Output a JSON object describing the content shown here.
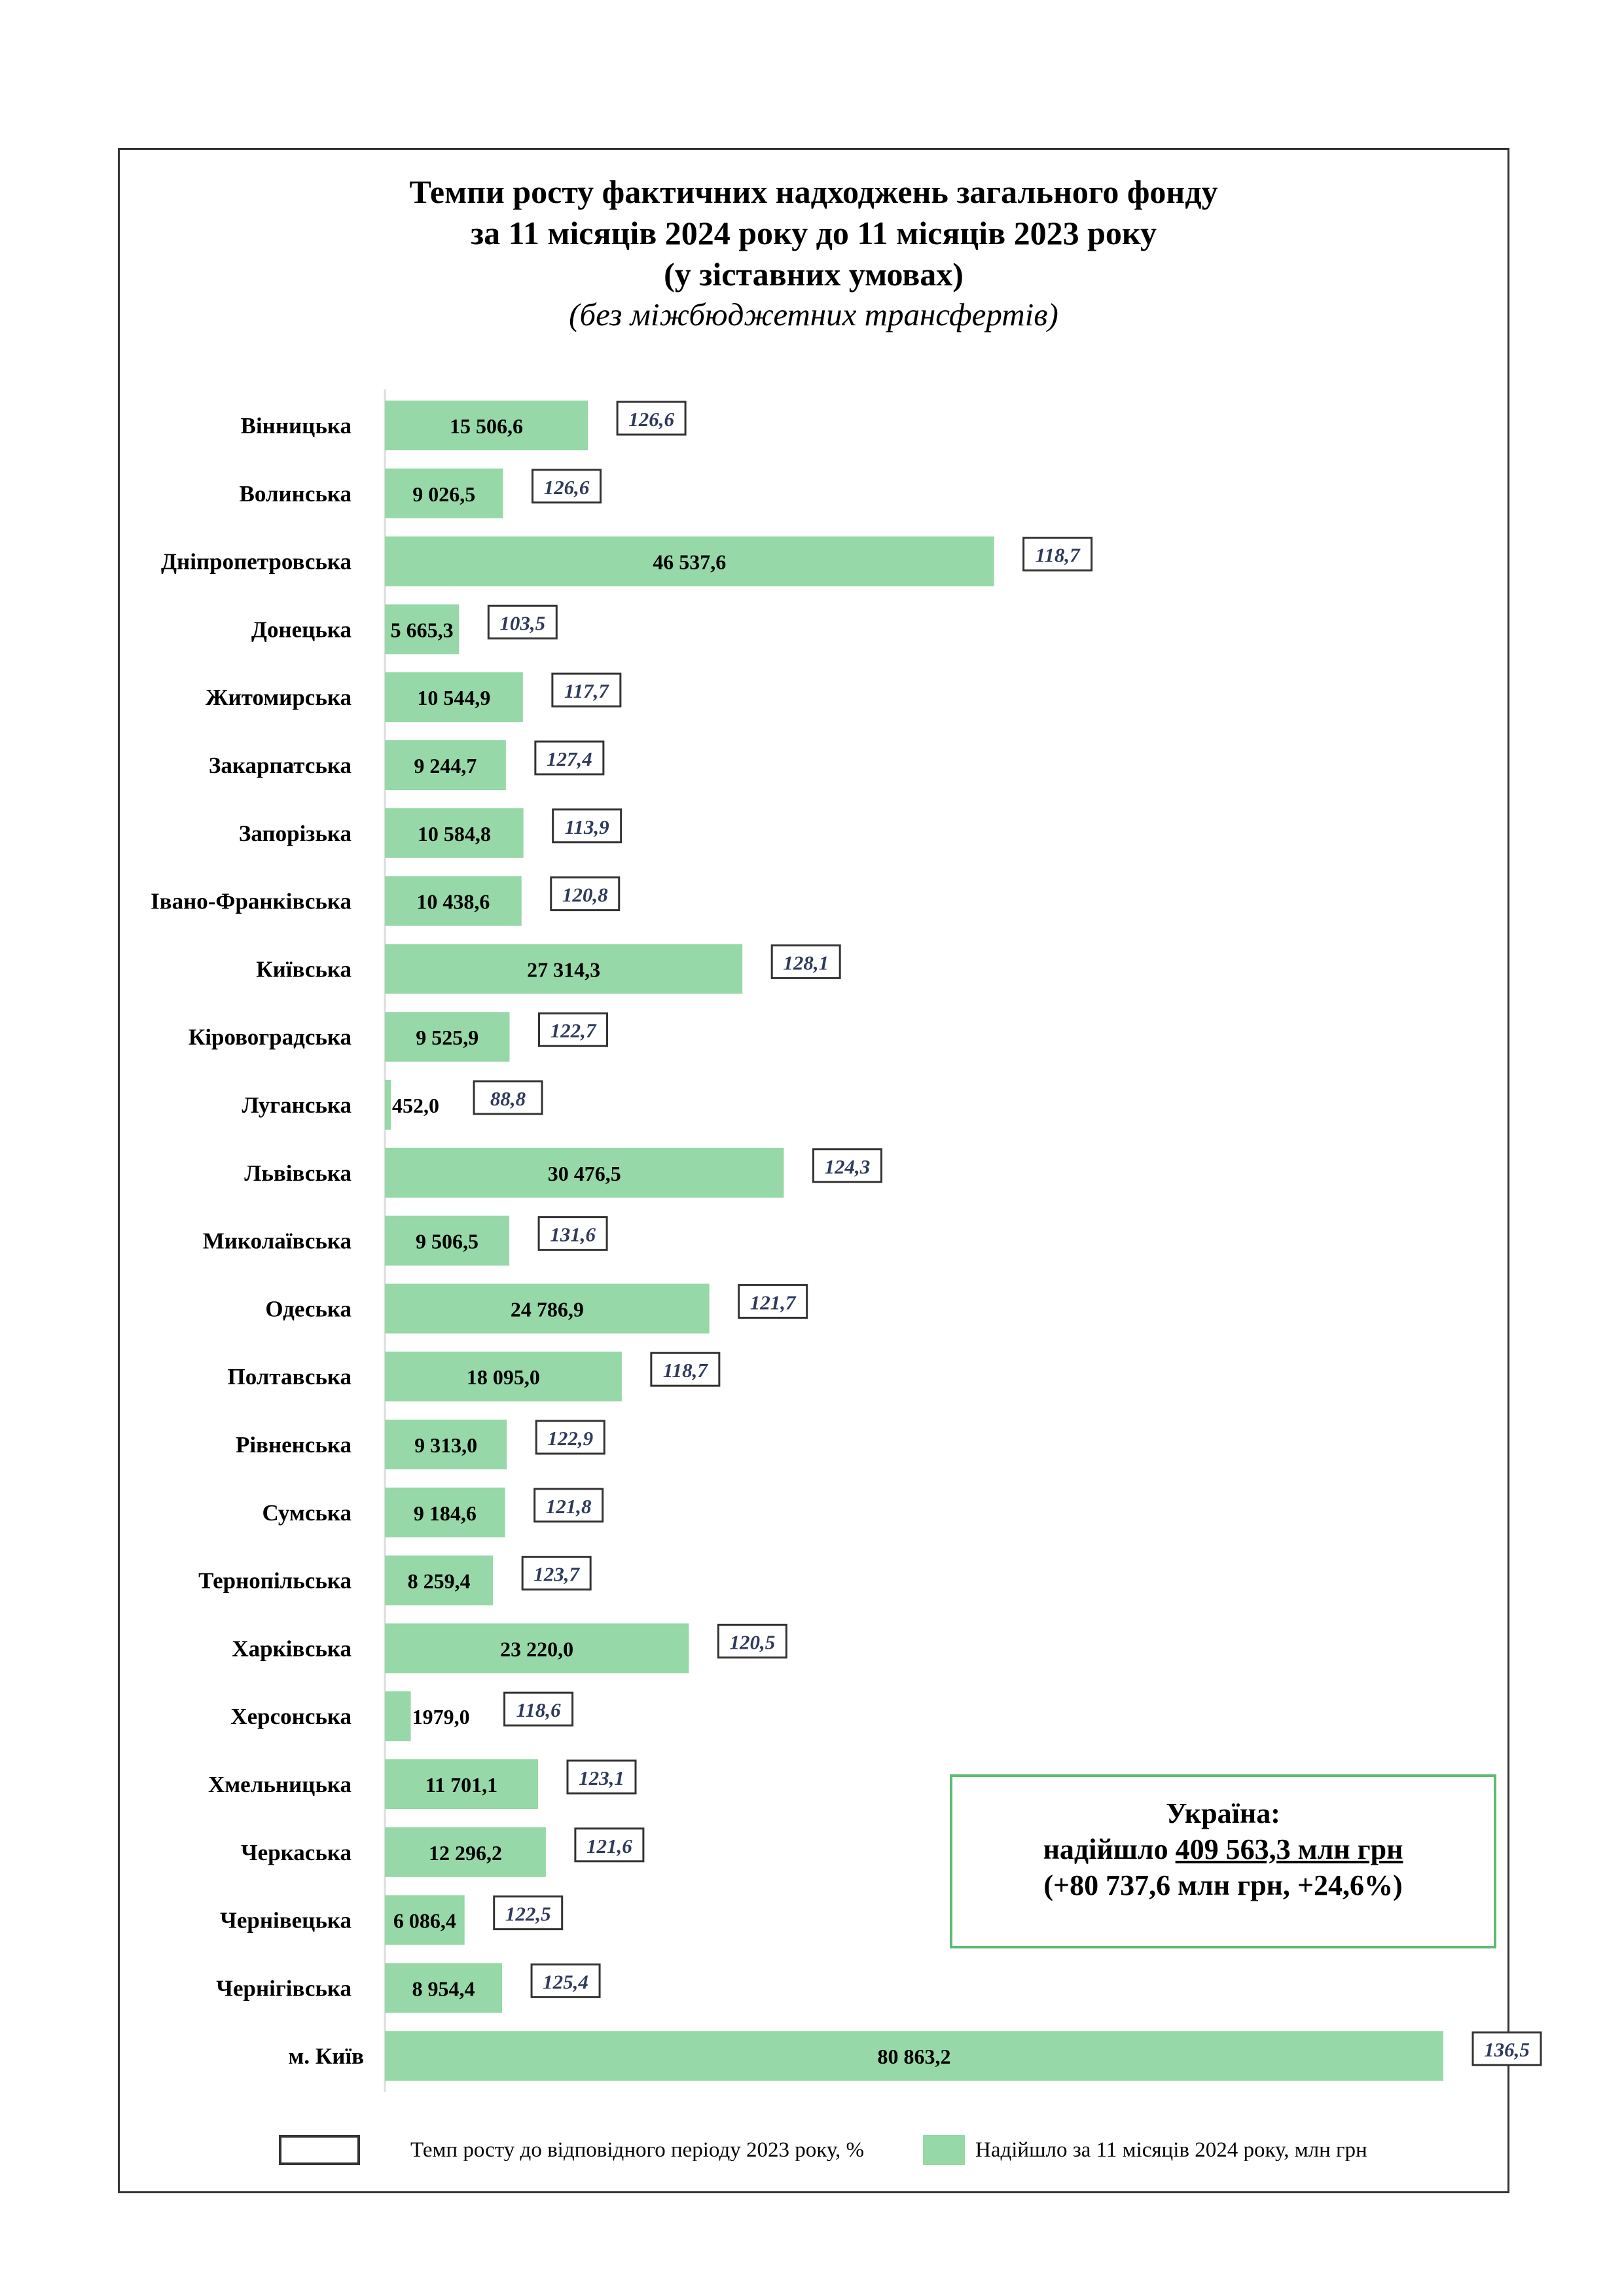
{
  "title_lines": [
    "Темпи росту фактичних надходжень загального фонду",
    "за 11 місяців 2024 року до 11 місяців 2023 року",
    "(у зіставних умовах)"
  ],
  "subtitle": "(без міжбюджетних трансфертів)",
  "colors": {
    "bar": "#96d8a8",
    "box_border": "#333333",
    "ukraine_border": "#5dbb73",
    "rate_text": "#2f3a5c"
  },
  "chart_data": {
    "type": "bar",
    "orientation": "horizontal",
    "categories": [
      "Вінницька",
      "Волинська",
      "Дніпропетровська",
      "Донецька",
      "Житомирська",
      "Закарпатська",
      "Запорізька",
      "Івано-Франківська",
      "Київська",
      "Кіровоградська",
      "Луганська",
      "Львівська",
      "Миколаївська",
      "Одеська",
      "Полтавська",
      "Рівненська",
      "Сумська",
      "Тернопільська",
      "Харківська",
      "Херсонська",
      "Хмельницька",
      "Черкаська",
      "Чернівецька",
      "Чернігівська",
      "м. Київ"
    ],
    "values": [
      15506.6,
      9026.5,
      46537.6,
      5665.3,
      10544.9,
      9244.7,
      10584.8,
      10438.6,
      27314.3,
      9525.9,
      452.0,
      30476.5,
      9506.5,
      24786.9,
      18095.0,
      9313.0,
      9184.6,
      8259.4,
      23220.0,
      1979.0,
      11701.1,
      12296.2,
      6086.4,
      8954.4,
      80863.2
    ],
    "value_labels": [
      "15 506,6",
      "9 026,5",
      "46 537,6",
      "5 665,3",
      "10 544,9",
      "9 244,7",
      "10 584,8",
      "10 438,6",
      "27 314,3",
      "9 525,9",
      "452,0",
      "30 476,5",
      "9 506,5",
      "24 786,9",
      "18 095,0",
      "9 313,0",
      "9 184,6",
      "8 259,4",
      "23 220,0",
      "1979,0",
      "11 701,1",
      "12 296,2",
      "6 086,4",
      "8 954,4",
      "80 863,2"
    ],
    "growth_rates": [
      "126,6",
      "126,6",
      "118,7",
      "103,5",
      "117,7",
      "127,4",
      "113,9",
      "120,8",
      "128,1",
      "122,7",
      "88,8",
      "124,3",
      "131,6",
      "121,7",
      "118,7",
      "122,9",
      "121,8",
      "123,7",
      "120,5",
      "118,6",
      "123,1",
      "121,6",
      "122,5",
      "125,4",
      "136,5"
    ],
    "series": [
      {
        "name": "Надійшло за 11 місяців 2024 року, млн грн"
      },
      {
        "name": "Темп росту до відповідного періоду 2023 року, %"
      }
    ],
    "xlim": [
      0,
      81500
    ],
    "grid": false,
    "legend_position": "bottom"
  },
  "summary": {
    "heading": "Україна:",
    "line2_prefix": "надійшло ",
    "line2_amount": "409 563,3 млн грн",
    "line3": "(+80 737,6 млн грн, +24,6%)"
  },
  "legend": {
    "rate_label": "Темп росту до відповідного періоду 2023 року, %",
    "amount_label": "Надійшло за 11 місяців 2024 року, млн грн"
  }
}
